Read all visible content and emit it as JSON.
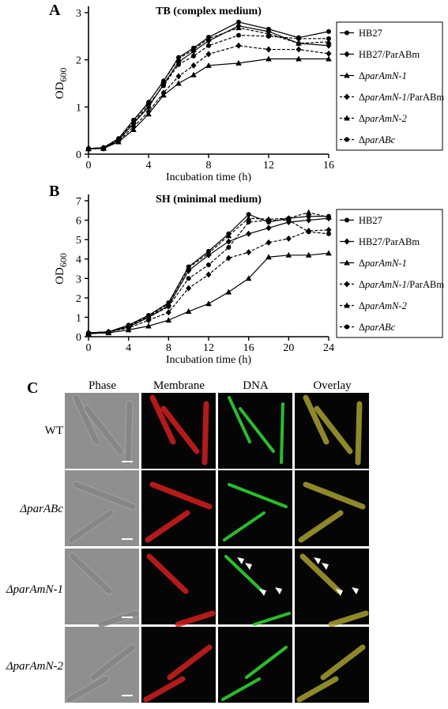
{
  "figure": {
    "panel_a_letter": "A",
    "panel_b_letter": "B",
    "panel_c_letter": "C"
  },
  "chart_data": [
    {
      "type": "line",
      "title": "TB (complex medium)",
      "xlabel": "Incubation time (h)",
      "ylabel": "OD600",
      "xlim": [
        0,
        16
      ],
      "ylim": [
        0,
        3
      ],
      "xticks": [
        0,
        4,
        8,
        12,
        16
      ],
      "yticks": [
        0,
        1,
        2,
        3
      ],
      "legend_position": "right",
      "x": [
        0,
        1,
        2,
        3,
        4,
        5,
        6,
        7,
        8,
        10,
        12,
        14,
        16
      ],
      "series": [
        {
          "name": "HB27",
          "marker": "circle",
          "dash": "solid",
          "values": [
            0.12,
            0.14,
            0.33,
            0.72,
            1.1,
            1.55,
            2.05,
            2.25,
            2.48,
            2.8,
            2.65,
            2.47,
            2.6
          ]
        },
        {
          "name": "HB27/ParABm",
          "marker": "diamond",
          "dash": "solid",
          "values": [
            0.11,
            0.13,
            0.3,
            0.65,
            1.0,
            1.48,
            1.95,
            2.18,
            2.4,
            2.72,
            2.6,
            2.35,
            2.3
          ]
        },
        {
          "name": "ΔparAmN-1",
          "marker": "triangle",
          "dash": "solid",
          "values": [
            0.11,
            0.12,
            0.26,
            0.52,
            0.85,
            1.25,
            1.5,
            1.68,
            1.88,
            1.93,
            2.02,
            2.02,
            2.02
          ]
        },
        {
          "name": "ΔparAmN-1/ParABm",
          "marker": "diamond",
          "dash": "dash",
          "values": [
            0.11,
            0.12,
            0.28,
            0.58,
            0.9,
            1.3,
            1.65,
            1.88,
            2.12,
            2.3,
            2.22,
            2.22,
            2.13
          ]
        },
        {
          "name": "ΔparAmN-2",
          "marker": "triangle",
          "dash": "dash",
          "values": [
            0.12,
            0.13,
            0.32,
            0.7,
            1.1,
            1.55,
            2.02,
            2.22,
            2.45,
            2.68,
            2.55,
            2.35,
            2.38
          ]
        },
        {
          "name": "ΔparABc",
          "marker": "circle",
          "dash": "dash",
          "values": [
            0.12,
            0.13,
            0.3,
            0.66,
            1.05,
            1.45,
            1.9,
            2.08,
            2.3,
            2.52,
            2.5,
            2.45,
            2.45
          ]
        }
      ]
    },
    {
      "type": "line",
      "title": "SH (minimal medium)",
      "xlabel": "Incubation time (h)",
      "ylabel": "OD600",
      "xlim": [
        0,
        24
      ],
      "ylim": [
        0,
        7
      ],
      "xticks": [
        0,
        4,
        8,
        12,
        16,
        20,
        24
      ],
      "yticks": [
        0,
        1,
        2,
        3,
        4,
        5,
        6,
        7
      ],
      "legend_position": "right",
      "x": [
        0,
        2,
        4,
        6,
        8,
        10,
        12,
        14,
        16,
        18,
        20,
        22,
        24
      ],
      "series": [
        {
          "name": "HB27",
          "marker": "circle",
          "dash": "solid",
          "values": [
            0.2,
            0.25,
            0.6,
            1.1,
            1.75,
            3.6,
            4.4,
            5.3,
            6.3,
            5.9,
            6.1,
            6.2,
            6.2
          ]
        },
        {
          "name": "HB27/ParABm",
          "marker": "diamond",
          "dash": "solid",
          "values": [
            0.2,
            0.25,
            0.5,
            1.0,
            1.6,
            3.4,
            4.2,
            4.9,
            5.3,
            5.6,
            5.9,
            6.0,
            6.1
          ]
        },
        {
          "name": "ΔparAmN-1",
          "marker": "triangle",
          "dash": "solid",
          "values": [
            0.15,
            0.2,
            0.35,
            0.55,
            0.85,
            1.3,
            1.7,
            2.3,
            3.0,
            4.1,
            4.2,
            4.2,
            4.3
          ]
        },
        {
          "name": "ΔparAmN-1/ParABm",
          "marker": "diamond",
          "dash": "dash",
          "values": [
            0.2,
            0.25,
            0.45,
            0.85,
            1.25,
            2.5,
            3.2,
            4.05,
            4.35,
            4.85,
            5.05,
            5.45,
            5.5
          ]
        },
        {
          "name": "ΔparAmN-2",
          "marker": "triangle",
          "dash": "dash",
          "values": [
            0.2,
            0.25,
            0.55,
            1.05,
            1.7,
            3.55,
            4.3,
            5.2,
            6.1,
            6.05,
            6.1,
            6.4,
            6.15
          ]
        },
        {
          "name": "ΔparABc",
          "marker": "circle",
          "dash": "dash",
          "values": [
            0.2,
            0.25,
            0.55,
            1.0,
            1.55,
            3.0,
            3.7,
            4.6,
            5.9,
            6.0,
            6.0,
            5.4,
            5.3
          ]
        }
      ]
    }
  ],
  "micrographs": {
    "column_headers": [
      "Phase",
      "Membrane",
      "DNA",
      "Overlay"
    ],
    "row_labels": [
      "WT",
      "ΔparABc",
      "ΔparAmN-1",
      "ΔparAmN-2"
    ],
    "colors": {
      "membrane": "#d41e1e",
      "dna": "#2fd12f",
      "overlay": "#a8a030",
      "phase_bg": "#8f8f8f",
      "phase_cell": "#5b5b5b"
    }
  }
}
